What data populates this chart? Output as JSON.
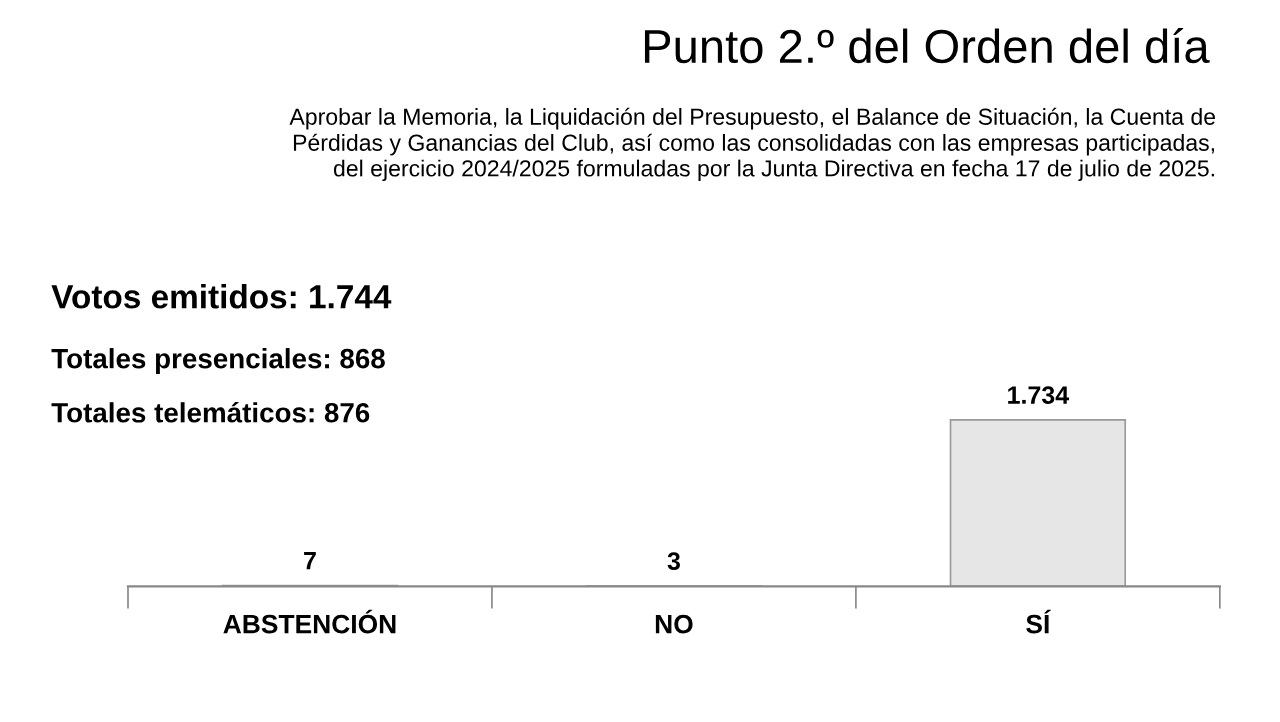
{
  "chart_data": {
    "type": "bar",
    "title": "Punto 2.º del Orden del día",
    "subtitle": "Aprobar la Memoria, la Liquidación del Presupuesto, el Balance de Situación, la Cuenta de\nPérdidas y Ganancias del Club, así como las consolidadas con las empresas participadas,\ndel ejercicio 2024/2025 formuladas por la Junta Directiva en fecha 17 de julio de 2025.",
    "annotations": [
      "Votos emitidos: 1.744",
      "Totales presenciales: 868",
      "Totales telemáticos: 876"
    ],
    "categories": [
      "ABSTENCIÓN",
      "NO",
      "SÍ"
    ],
    "values": [
      7,
      3,
      1734
    ],
    "colors": [
      "#1f8f1f",
      "#c42a1f",
      "#e6e6e6"
    ],
    "value_labels": [
      "7",
      "3",
      "1.734"
    ],
    "grid": false,
    "legend": false
  }
}
